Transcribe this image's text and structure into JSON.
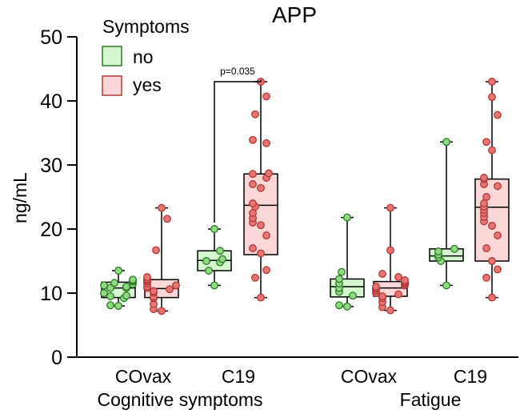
{
  "chart_data": {
    "type": "box",
    "title": "APP",
    "ylabel": "ng/mL",
    "xlabel": "",
    "ylim": [
      0,
      50
    ],
    "yticks": [
      0,
      10,
      20,
      30,
      40,
      50
    ],
    "grid": false,
    "legend": {
      "title": "Symptoms",
      "placement": "top-left",
      "entries": [
        {
          "label": "no",
          "fill": "#d4f7cf",
          "stroke": "#2f7a28"
        },
        {
          "label": "yes",
          "fill": "#fbd7d7",
          "stroke": "#b43a3a"
        }
      ]
    },
    "colors": {
      "no_fill": "#d4f7cf",
      "no_point": "#8fd983",
      "no_stroke": "#2f7a28",
      "yes_fill": "#fbd7d7",
      "yes_point": "#e87373",
      "yes_stroke": "#b43a3a"
    },
    "group_labels": [
      "Cognitive symptoms",
      "Fatigue"
    ],
    "categories": [
      "COvax",
      "C19",
      "COvax",
      "C19"
    ],
    "boxes": [
      {
        "group": "Cognitive symptoms",
        "category": "COvax",
        "symptoms": "no",
        "min": 8.0,
        "q1": 9.3,
        "median": 10.8,
        "q3": 11.7,
        "max": 13.5,
        "points": [
          8.0,
          8.1,
          9.2,
          9.5,
          9.6,
          10.0,
          10.8,
          10.8,
          11.0,
          11.2,
          11.4,
          11.6,
          11.8,
          12.0,
          12.1,
          13.5
        ]
      },
      {
        "group": "Cognitive symptoms",
        "category": "COvax",
        "symptoms": "yes",
        "min": 7.2,
        "q1": 9.3,
        "median": 10.7,
        "q3": 12.1,
        "max": 23.3,
        "points": [
          7.2,
          7.5,
          8.3,
          9.2,
          9.4,
          10.1,
          10.3,
          10.6,
          10.8,
          11.0,
          11.2,
          11.5,
          11.8,
          12.0,
          12.2,
          12.5,
          16.7,
          21.6,
          23.3
        ]
      },
      {
        "group": "Cognitive symptoms",
        "category": "C19",
        "symptoms": "no",
        "min": 11.2,
        "q1": 13.5,
        "median": 15.1,
        "q3": 16.6,
        "max": 20.0,
        "points": [
          11.2,
          13.5,
          14.8,
          15.0,
          15.3,
          16.6,
          20.0
        ]
      },
      {
        "group": "Cognitive symptoms",
        "category": "C19",
        "symptoms": "yes",
        "min": 9.3,
        "q1": 16.0,
        "median": 23.7,
        "q3": 28.6,
        "max": 43.0,
        "points": [
          9.3,
          12.4,
          13.6,
          16.2,
          17.0,
          19.0,
          20.6,
          21.0,
          21.7,
          22.5,
          23.5,
          24.0,
          26.4,
          27.0,
          28.0,
          28.6,
          28.7,
          33.4,
          33.9,
          37.9,
          40.7,
          43.0
        ]
      },
      {
        "group": "Fatigue",
        "category": "COvax",
        "symptoms": "no",
        "min": 7.9,
        "q1": 9.4,
        "median": 11.0,
        "q3": 12.2,
        "max": 21.8,
        "points": [
          7.9,
          8.1,
          9.6,
          10.2,
          10.8,
          11.5,
          12.2,
          13.3,
          21.8
        ]
      },
      {
        "group": "Fatigue",
        "category": "COvax",
        "symptoms": "yes",
        "min": 7.3,
        "q1": 9.5,
        "median": 10.8,
        "q3": 11.8,
        "max": 23.3,
        "points": [
          7.3,
          7.8,
          8.6,
          9.2,
          9.5,
          9.8,
          10.0,
          10.3,
          10.6,
          10.8,
          11.0,
          11.2,
          11.4,
          11.6,
          11.8,
          12.0,
          12.5,
          13.0,
          16.7,
          23.3
        ]
      },
      {
        "group": "Fatigue",
        "category": "C19",
        "symptoms": "no",
        "min": 11.2,
        "q1": 15.0,
        "median": 15.8,
        "q3": 16.9,
        "max": 33.6,
        "points": [
          11.2,
          15.0,
          15.6,
          16.0,
          16.5,
          16.9,
          33.6
        ]
      },
      {
        "group": "Fatigue",
        "category": "C19",
        "symptoms": "yes",
        "min": 9.3,
        "q1": 15.0,
        "median": 23.4,
        "q3": 27.8,
        "max": 43.0,
        "points": [
          9.3,
          12.4,
          13.7,
          15.0,
          17.0,
          19.0,
          20.5,
          21.2,
          21.9,
          22.5,
          23.0,
          23.5,
          24.0,
          25.0,
          26.7,
          27.0,
          27.8,
          28.0,
          32.3,
          33.6,
          37.8,
          40.6,
          43.0
        ]
      }
    ],
    "annotations": [
      {
        "text": "p=0.035",
        "between": [
          2,
          3
        ]
      }
    ]
  }
}
